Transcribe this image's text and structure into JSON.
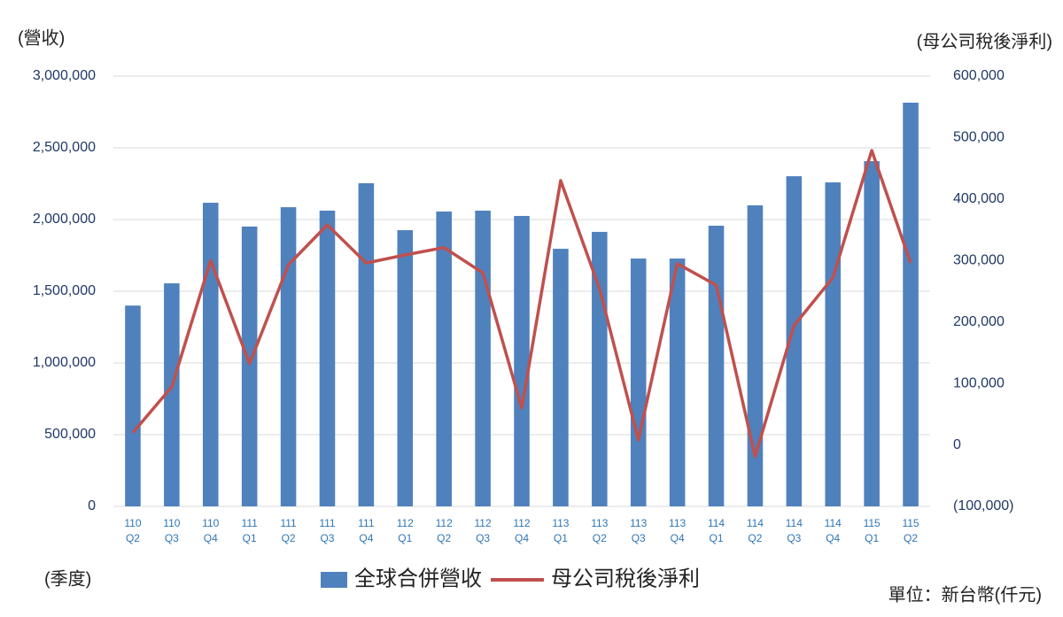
{
  "chart_data": {
    "type": "bar-line",
    "ylabel": "(營收)",
    "y2label": "(母公司稅後淨利)",
    "xlabel": "(季度)",
    "note": "單位：新台幣(仟元)",
    "categories": [
      [
        "110",
        "Q2"
      ],
      [
        "110",
        "Q3"
      ],
      [
        "110",
        "Q4"
      ],
      [
        "111",
        "Q1"
      ],
      [
        "111",
        "Q2"
      ],
      [
        "111",
        "Q3"
      ],
      [
        "111",
        "Q4"
      ],
      [
        "112",
        "Q1"
      ],
      [
        "112",
        "Q2"
      ],
      [
        "112",
        "Q3"
      ],
      [
        "112",
        "Q4"
      ],
      [
        "113",
        "Q1"
      ],
      [
        "113",
        "Q2"
      ],
      [
        "113",
        "Q3"
      ],
      [
        "113",
        "Q4"
      ],
      [
        "114",
        "Q1"
      ],
      [
        "114",
        "Q2"
      ],
      [
        "114",
        "Q3"
      ],
      [
        "114",
        "Q4"
      ],
      [
        "115",
        "Q1"
      ],
      [
        "115",
        "Q2"
      ]
    ],
    "series": [
      {
        "name": "全球合併營收",
        "type": "bar",
        "color": "#4f81bd",
        "values": [
          1400000,
          1555000,
          2117000,
          1951000,
          2086000,
          2062000,
          2253000,
          1926000,
          2056000,
          2062000,
          2025000,
          1796000,
          1914000,
          1728000,
          1728000,
          1957000,
          2099000,
          2302000,
          2259000,
          2407000,
          2815000
        ]
      },
      {
        "name": "母公司稅後淨利",
        "type": "line",
        "axis": "y2",
        "color": "#c0504d",
        "values": [
          20000,
          94500,
          300000,
          132000,
          293000,
          358000,
          296000,
          309000,
          321000,
          280000,
          60000,
          430000,
          254000,
          8000,
          295000,
          260000,
          -19000,
          194000,
          272000,
          479000,
          296000
        ]
      }
    ],
    "ylim": [
      0,
      3000000
    ],
    "yticks": [
      0,
      {
        "value": 500000,
        "label": "500,000"
      },
      {
        "value": 1000000,
        "label": "1,000,000"
      },
      {
        "value": 1500000,
        "label": "1,500,000"
      },
      {
        "value": 2000000,
        "label": "2,000,000"
      },
      {
        "value": 2500000,
        "label": "2,500,000"
      },
      {
        "value": 3000000,
        "label": "3,000,000"
      }
    ],
    "y2lim": [
      -100000,
      600000
    ],
    "y2ticks": [
      {
        "value": -100000,
        "label": "(100,000)"
      },
      0,
      {
        "value": 100000,
        "label": "100,000"
      },
      {
        "value": 200000,
        "label": "200,000"
      },
      {
        "value": 300000,
        "label": "300,000"
      },
      {
        "value": 400000,
        "label": "400,000"
      },
      {
        "value": 500000,
        "label": "500,000"
      },
      {
        "value": 600000,
        "label": "600,000"
      }
    ],
    "grid": true
  }
}
